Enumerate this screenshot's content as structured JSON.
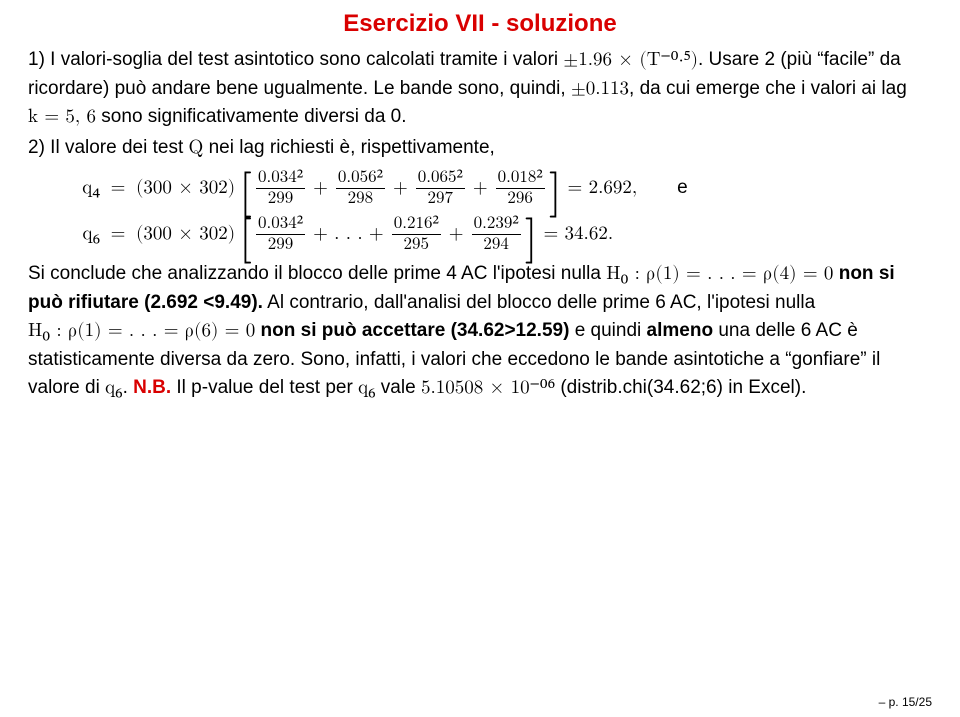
{
  "title": {
    "text": "Esercizio VII - soluzione",
    "color": "#d90000",
    "fontsize": 24,
    "weight": "bold"
  },
  "para1": {
    "a": "1) I valori-soglia del test asintotico sono calcolati tramite i valori",
    "b_math": "±1.96 × (T⁻⁰⋅⁵)",
    "c": ". Usare 2 (più “facile” da ricordare) può andare bene ugualmente. Le bande sono, quindi, ",
    "d_math": "±0.113",
    "e": ", da cui emerge che i valori ai lag ",
    "f_math": "k = 5, 6",
    "g": " sono significativamente diversi da 0."
  },
  "para2": {
    "a": "2) Il valore dei test ",
    "q": "Q",
    "b": " nei lag richiesti è, rispettivamente,"
  },
  "eq": {
    "factor": "(300 × 302)",
    "q4": {
      "lhs": "q₄",
      "terms": [
        {
          "num": "0.034²",
          "den": "299"
        },
        {
          "num": "0.056²",
          "den": "298"
        },
        {
          "num": "0.065²",
          "den": "297"
        },
        {
          "num": "0.018²",
          "den": "296"
        }
      ],
      "result": "= 2.692,",
      "trail": "e"
    },
    "q6": {
      "lhs": "q₆",
      "first": {
        "num": "0.034²",
        "den": "299"
      },
      "dots": "+ . . . +",
      "t2": {
        "num": "0.216²",
        "den": "295"
      },
      "t3": {
        "num": "0.239²",
        "den": "294"
      },
      "result": "= 34.62."
    }
  },
  "para3": {
    "a": "Si conclude che analizzando il blocco delle prime 4 AC l'ipotesi nulla",
    "h0a_math": "H₀ : ρ(1) = . . . = ρ(4) = 0",
    "b_bold": " non si può rifiutare (2.692 <9.49).",
    "c": " Al contrario, dall'analisi del blocco delle prime 6 AC, l'ipotesi nulla",
    "h0b_math": "H₀ : ρ(1) = . . . = ρ(6) = 0",
    "d_bold": " non si può accettare (34.62>12.59)",
    "e": " e quindi ",
    "f_bold": "almeno",
    "g": " una delle 6 AC è statisticamente diversa da zero. Sono, infatti, i valori che eccedono le bande asintotiche a “gonfiare” il valore di ",
    "q6": "q₆",
    "h": ". ",
    "nb": "N.B.",
    "i": " Il p-value del test per ",
    "j_math": " vale ",
    "pval": "5.10508 × 10⁻⁰⁶",
    "k": " (distrib.chi(34.62;6) in Excel)."
  },
  "footer": "– p. 15/25",
  "colors": {
    "accent": "#d90000",
    "text": "#000000",
    "background": "#ffffff"
  }
}
